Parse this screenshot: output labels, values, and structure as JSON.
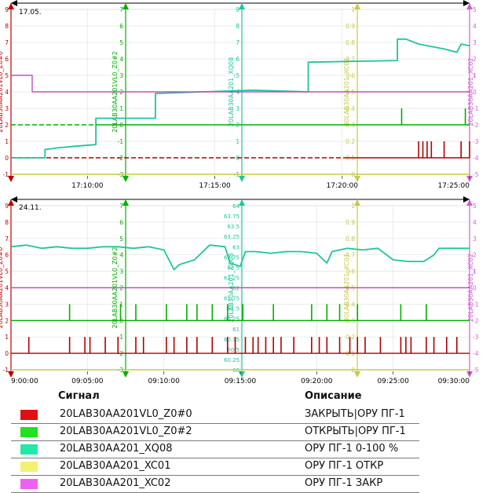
{
  "chart_data": [
    {
      "type": "line",
      "date_label": "17.05.",
      "x_range": [
        "17:07:00",
        "17:25:00"
      ],
      "x_tick_labels": [
        "17:10:00",
        "17:15:00",
        "17:20:00",
        "17:25:00"
      ],
      "axes": [
        {
          "name": "20LAB30AA201VL0_Z0#0",
          "color": "#c00000",
          "ticks": [
            "-1",
            "0",
            "1",
            "2",
            "3",
            "4",
            "5",
            "6",
            "7",
            "8",
            "9"
          ]
        },
        {
          "name": "20LAB30AA201VL0_Z0#2",
          "color": "#00b000",
          "ticks": [
            "-3",
            "-2",
            "-1",
            "0",
            "1",
            "2",
            "3",
            "4",
            "5",
            "6",
            "7"
          ]
        },
        {
          "name": "20LAB30AA201_XQ08",
          "color": "#1ec69a",
          "ticks": [
            "-1",
            "0",
            "1",
            "2",
            "3",
            "4",
            "5",
            "6",
            "7",
            "8",
            "9"
          ]
        },
        {
          "name": "20LAB30AA201_XC01",
          "color": "#c8c84a",
          "ticks": [
            "0",
            "0.1",
            "0.2",
            "0.3",
            "0.4",
            "0.5",
            "0.6",
            "0.7",
            "0.8",
            "0.9",
            "1"
          ]
        },
        {
          "name": "20LAB30AA201_XC02",
          "color": "#d060d0",
          "ticks": [
            "-5",
            "-4",
            "-3",
            "-2",
            "-1",
            "0",
            "1",
            "2",
            "3",
            "4",
            "5"
          ]
        }
      ],
      "series": [
        {
          "name": "20LAB30AA201_XQ08",
          "axis": "left",
          "points": [
            [
              "17:07:00",
              0.0
            ],
            [
              "17:08:20",
              0.0
            ],
            [
              "17:08:20",
              0.5
            ],
            [
              "17:08:50",
              0.6
            ],
            [
              "17:09:30",
              0.7
            ],
            [
              "17:10:20",
              0.8
            ],
            [
              "17:10:20",
              2.4
            ],
            [
              "17:12:40",
              2.4
            ],
            [
              "17:12:40",
              3.9
            ],
            [
              "17:14:30",
              4.0
            ],
            [
              "17:16:30",
              4.1
            ],
            [
              "17:18:40",
              4.0
            ],
            [
              "17:18:40",
              5.8
            ],
            [
              "17:22:10",
              5.9
            ],
            [
              "17:22:10",
              7.2
            ],
            [
              "17:22:30",
              7.2
            ],
            [
              "17:23:00",
              6.9
            ],
            [
              "17:24:00",
              6.6
            ],
            [
              "17:24:30",
              6.4
            ],
            [
              "17:24:40",
              6.9
            ],
            [
              "17:25:00",
              6.8
            ]
          ]
        },
        {
          "name": "20LAB30AA201_XC02",
          "axis": "left",
          "points": [
            [
              "17:07:00",
              5.0
            ],
            [
              "17:07:50",
              5.0
            ],
            [
              "17:07:50",
              4.0
            ],
            [
              "17:25:00",
              4.0
            ]
          ]
        },
        {
          "name": "20LAB30AA201VL0_Z0#2",
          "axis": "left",
          "points": [
            [
              "17:07:00",
              2.0
            ],
            [
              "17:25:00",
              2.0
            ]
          ],
          "dash_until": "17:10:20",
          "pulses_at": [
            "17:22:20",
            "17:24:50"
          ],
          "pulse_height": 1
        }
      ],
      "pulse_series": {
        "name": "20LAB30AA201VL0_Z0#0",
        "baseline": 0,
        "height": 1,
        "dash_until": "17:20:10",
        "pulses_at": [
          "17:23:00",
          "17:23:10",
          "17:23:20",
          "17:23:30",
          "17:24:00",
          "17:24:40",
          "17:25:00"
        ]
      },
      "baseline_series": {
        "name": "20LAB30AA201_XC01",
        "value": -1
      }
    },
    {
      "type": "line",
      "date_label": "24.11.",
      "x_range": [
        "9:00:00",
        "9:30:00"
      ],
      "x_tick_labels": [
        "9:00:00",
        "09:05:00",
        "09:10:00",
        "09:15:00",
        "09:20:00",
        "09:25:00",
        "09:30:00"
      ],
      "axes": [
        {
          "name": "20LAB30AA201VL0_Z0#0",
          "color": "#c00000",
          "ticks": [
            "-1",
            "0",
            "1",
            "2",
            "3",
            "4",
            "5",
            "6",
            "7",
            "8",
            "9"
          ]
        },
        {
          "name": "20LAB30AA201VL0_Z0#2",
          "color": "#00b000",
          "ticks": [
            "-3",
            "-2",
            "-1",
            "0",
            "1",
            "2",
            "3",
            "4",
            "5",
            "6",
            "7"
          ]
        },
        {
          "name": "20LAB30AA201_XQ08",
          "color": "#1ec69a",
          "ticks": [
            "60",
            "60.25",
            "60.5",
            "60.75",
            "61",
            "61.25",
            "61.5",
            "61.75",
            "62",
            "62.25",
            "62.5",
            "62.75",
            "63",
            "63.25",
            "63.5",
            "63.75",
            "64"
          ]
        },
        {
          "name": "20LAB30AA201_XC01",
          "color": "#c8c84a",
          "ticks": [
            "0",
            "0.1",
            "0.2",
            "0.3",
            "0.4",
            "0.5",
            "0.6",
            "0.7",
            "0.8",
            "0.9",
            "1"
          ]
        },
        {
          "name": "20LAB30AA201_XC02",
          "color": "#d060d0",
          "ticks": [
            "-5",
            "-4",
            "-3",
            "-2",
            "-1",
            "0",
            "1",
            "2",
            "3",
            "4",
            "5"
          ]
        }
      ],
      "series": [
        {
          "name": "20LAB30AA201_XQ08",
          "axis": "left",
          "points": [
            [
              "9:00:00",
              6.5
            ],
            [
              "9:01:00",
              6.6
            ],
            [
              "9:02:00",
              6.4
            ],
            [
              "9:03:00",
              6.5
            ],
            [
              "9:04:00",
              6.4
            ],
            [
              "9:05:00",
              6.4
            ],
            [
              "9:06:00",
              6.5
            ],
            [
              "9:07:00",
              6.5
            ],
            [
              "9:08:00",
              6.4
            ],
            [
              "9:09:00",
              6.5
            ],
            [
              "9:10:00",
              6.3
            ],
            [
              "9:10:40",
              5.1
            ],
            [
              "9:11:00",
              5.4
            ],
            [
              "9:12:00",
              5.7
            ],
            [
              "9:12:40",
              6.3
            ],
            [
              "9:13:00",
              6.6
            ],
            [
              "9:14:00",
              6.5
            ],
            [
              "9:14:20",
              5.5
            ],
            [
              "9:15:00",
              5.3
            ],
            [
              "9:15:20",
              6.2
            ],
            [
              "9:16:00",
              6.2
            ],
            [
              "9:17:00",
              6.1
            ],
            [
              "9:18:00",
              6.2
            ],
            [
              "9:19:00",
              6.2
            ],
            [
              "9:20:00",
              6.1
            ],
            [
              "9:20:40",
              5.5
            ],
            [
              "9:21:00",
              6.2
            ],
            [
              "9:22:00",
              6.4
            ],
            [
              "9:23:00",
              6.3
            ],
            [
              "9:24:00",
              6.4
            ],
            [
              "9:25:00",
              5.7
            ],
            [
              "9:26:00",
              5.6
            ],
            [
              "9:27:00",
              5.6
            ],
            [
              "9:27:40",
              6.0
            ],
            [
              "9:28:00",
              6.4
            ],
            [
              "9:29:00",
              6.4
            ],
            [
              "9:30:00",
              6.4
            ]
          ]
        },
        {
          "name": "20LAB30AA201_XC02",
          "axis": "left",
          "points": [
            [
              "9:00:00",
              4.0
            ],
            [
              "9:30:00",
              4.0
            ]
          ]
        },
        {
          "name": "20LAB30AA201VL0_Z0#2",
          "axis": "left",
          "points": [
            [
              "9:00:00",
              2.0
            ],
            [
              "9:30:00",
              2.0
            ]
          ],
          "pulses_at": [
            "9:03:50",
            "9:07:10",
            "9:08:10",
            "9:10:10",
            "9:11:30",
            "9:12:10",
            "9:13:10",
            "9:14:10",
            "9:15:10",
            "9:17:10",
            "9:19:40",
            "9:20:40",
            "9:21:30",
            "9:22:40",
            "9:25:30",
            "9:27:10"
          ],
          "pulse_height": 1
        }
      ],
      "pulse_series": {
        "name": "20LAB30AA201VL0_Z0#0",
        "baseline": 0,
        "height": 1,
        "pulses_at": [
          "9:01:10",
          "9:03:50",
          "9:04:50",
          "9:05:10",
          "9:06:10",
          "9:07:00",
          "9:08:10",
          "9:08:40",
          "9:10:10",
          "9:10:40",
          "9:11:30",
          "9:12:10",
          "9:13:10",
          "9:14:10",
          "9:14:40",
          "9:15:20",
          "9:15:50",
          "9:16:10",
          "9:16:40",
          "9:17:10",
          "9:17:40",
          "9:18:30",
          "9:19:40",
          "9:20:10",
          "9:20:40",
          "9:21:30",
          "9:22:10",
          "9:22:40",
          "9:23:10",
          "9:24:10",
          "9:25:30",
          "9:25:50",
          "9:26:10",
          "9:27:10",
          "9:27:40",
          "9:28:30",
          "9:29:10"
        ]
      },
      "baseline_series": {
        "name": "20LAB30AA201_XC01",
        "value": -1
      }
    }
  ],
  "legend": {
    "header_signal": "Сигнал",
    "header_description": "Описание",
    "rows": [
      {
        "signal": "20LAB30AA201VL0_Z0#0",
        "description": "ЗАКРЫТЬ|ОРУ ПГ-1",
        "color": "#e01010"
      },
      {
        "signal": "20LAB30AA201VL0_Z0#2",
        "description": "ОТКРЫТЬ|ОРУ ПГ-1",
        "color": "#22e022"
      },
      {
        "signal": "20LAB30AA201_XQ08",
        "description": "ОРУ ПГ-1 0-100 %",
        "color": "#22e8a8"
      },
      {
        "signal": "20LAB30AA201_XC01",
        "description": "ОРУ ПГ-1 ОТКР",
        "color": "#f4f070"
      },
      {
        "signal": "20LAB30AA201_XC02",
        "description": "ОРУ ПГ-1 ЗАКР",
        "color": "#f060f0"
      }
    ]
  }
}
